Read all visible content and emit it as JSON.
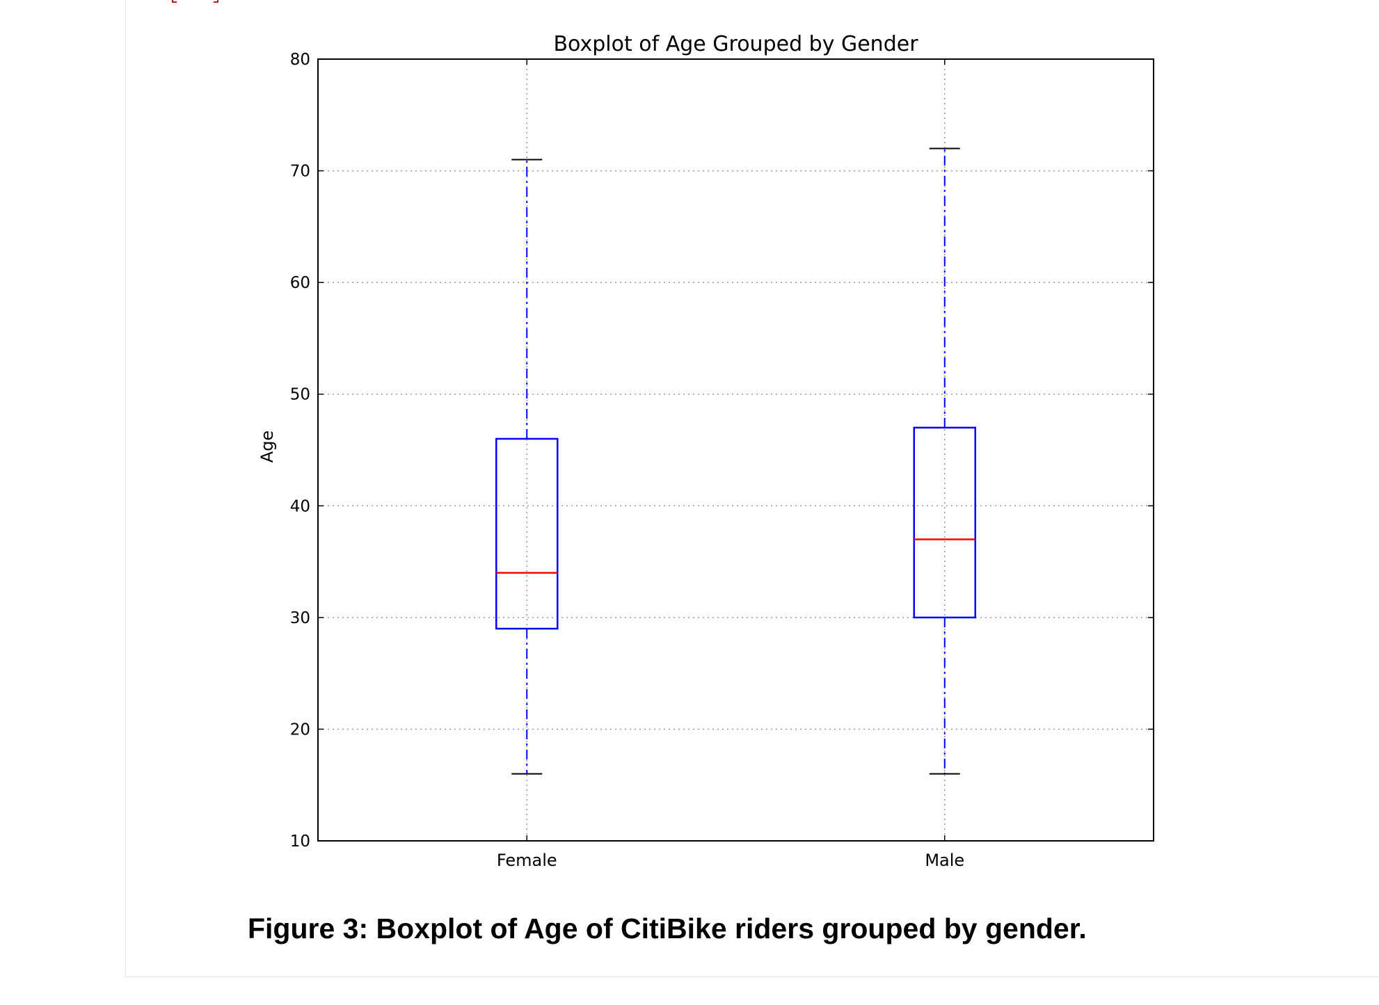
{
  "chart_data": {
    "type": "box",
    "title": "Boxplot of Age Grouped by Gender",
    "ylabel": "Age",
    "xlabel": "",
    "ylim": [
      10,
      80
    ],
    "yticks": [
      10,
      20,
      30,
      40,
      50,
      60,
      70,
      80
    ],
    "grid": true,
    "categories": [
      "Female",
      "Male"
    ],
    "boxes": [
      {
        "category": "Female",
        "whisker_low": 16,
        "q1": 29,
        "median": 34,
        "q3": 46,
        "whisker_high": 71
      },
      {
        "category": "Male",
        "whisker_low": 16,
        "q1": 30,
        "median": 37,
        "q3": 47,
        "whisker_high": 72
      }
    ],
    "colors": {
      "box": "#0000ff",
      "whisker": "#0000ff",
      "median": "#ff0000",
      "cap": "#000000",
      "grid": "#9a9a9a",
      "frame": "#000000"
    }
  },
  "caption": "Figure 3: Boxplot of Age of CitiBike riders grouped by gender."
}
